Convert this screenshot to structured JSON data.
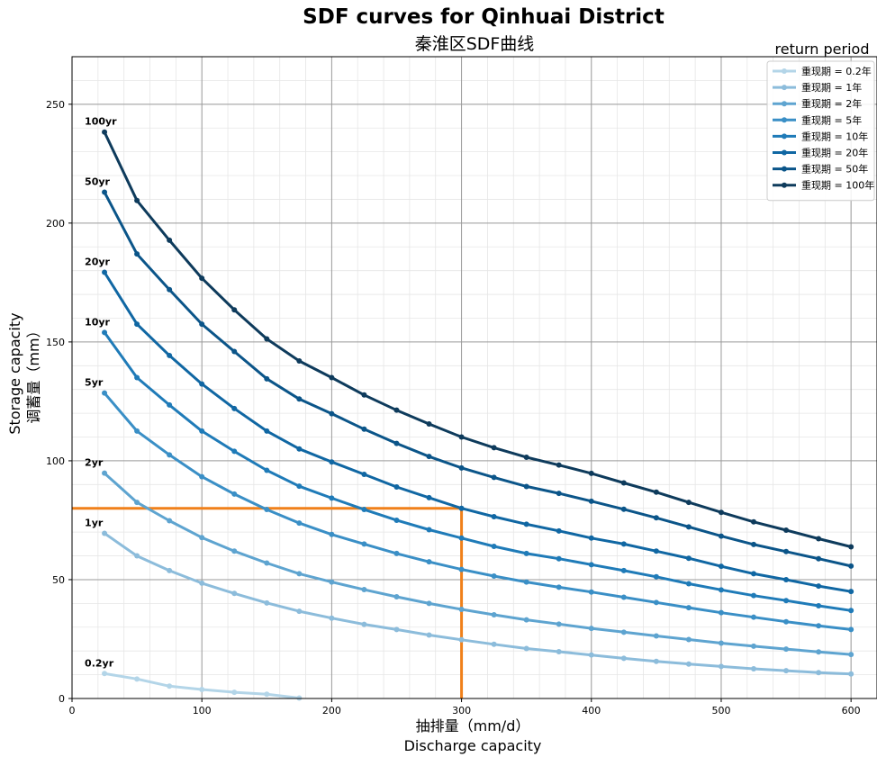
{
  "chart_data": {
    "type": "line",
    "title": "SDF curves for Qinhuai District",
    "subtitle": "秦淮区SDF曲线",
    "xlabel_zh": "抽排量（mm/d）",
    "xlabel_en": "Discharge capacity",
    "ylabel_en": "Storage capacity",
    "ylabel_zh": "调蓄量（mm）",
    "xlim": [
      0,
      620
    ],
    "ylim": [
      0,
      270
    ],
    "x_ticks": [
      "0",
      "100",
      "200",
      "300",
      "400",
      "500",
      "600"
    ],
    "y_ticks": [
      "0",
      "50",
      "100",
      "150",
      "200",
      "250"
    ],
    "x_tick_values": [
      0,
      100,
      200,
      300,
      400,
      500,
      600
    ],
    "y_tick_values": [
      0,
      50,
      100,
      150,
      200,
      250
    ],
    "grid": true,
    "legend_title": "return period",
    "legend_position": "top-right",
    "series": [
      {
        "name": "重现期 = 0.2年",
        "label": "0.2yr",
        "color": "#b3d5e8",
        "x": [
          25,
          50,
          75,
          100,
          125,
          150,
          175
        ],
        "values": [
          10.5,
          8.2,
          5.2,
          3.8,
          2.6,
          1.8,
          0.2
        ]
      },
      {
        "name": "重现期 = 1年",
        "label": "1yr",
        "color": "#8cbcdb",
        "x": [
          25,
          50,
          75,
          100,
          125,
          150,
          175,
          200,
          225,
          250,
          275,
          300,
          325,
          350,
          375,
          400,
          425,
          450,
          475,
          500,
          525,
          550,
          575,
          600
        ],
        "values": [
          69.5,
          60,
          53.8,
          48.5,
          44.2,
          40.2,
          36.7,
          33.8,
          31.2,
          29,
          26.7,
          24.7,
          22.8,
          21,
          19.7,
          18.3,
          16.9,
          15.6,
          14.5,
          13.5,
          12.5,
          11.7,
          10.9,
          10.3
        ]
      },
      {
        "name": "重现期 = 2年",
        "label": "2yr",
        "color": "#5ea4d0",
        "x": [
          25,
          50,
          75,
          100,
          125,
          150,
          175,
          200,
          225,
          250,
          275,
          300,
          325,
          350,
          375,
          400,
          425,
          450,
          475,
          500,
          525,
          550,
          575,
          600
        ],
        "values": [
          94.8,
          82.5,
          74.8,
          67.7,
          62,
          57,
          52.5,
          49,
          45.8,
          42.8,
          40,
          37.5,
          35.2,
          33.1,
          31.3,
          29.5,
          27.9,
          26.3,
          24.8,
          23.3,
          22,
          20.8,
          19.6,
          18.5
        ]
      },
      {
        "name": "重现期 = 5年",
        "label": "5yr",
        "color": "#3a8fc6",
        "x": [
          25,
          50,
          75,
          100,
          125,
          150,
          175,
          200,
          225,
          250,
          275,
          300,
          325,
          350,
          375,
          400,
          425,
          450,
          475,
          500,
          525,
          550,
          575,
          600
        ],
        "values": [
          128.5,
          112.5,
          102.5,
          93.3,
          86,
          79.5,
          73.8,
          69,
          65,
          61,
          57.5,
          54.3,
          51.5,
          49,
          46.8,
          44.8,
          42.6,
          40.4,
          38.2,
          36.1,
          34.2,
          32.3,
          30.6,
          29
        ]
      },
      {
        "name": "重现期 = 10年",
        "label": "10yr",
        "color": "#1f7bb8",
        "x": [
          25,
          50,
          75,
          100,
          125,
          150,
          175,
          200,
          225,
          250,
          275,
          300,
          325,
          350,
          375,
          400,
          425,
          450,
          475,
          500,
          525,
          550,
          575,
          600
        ],
        "values": [
          154,
          135,
          123.5,
          112.5,
          104,
          96,
          89.3,
          84.3,
          79.5,
          75,
          71,
          67.5,
          64,
          61,
          58.8,
          56.3,
          53.8,
          51.2,
          48.3,
          45.7,
          43.3,
          41.2,
          39,
          37
        ]
      },
      {
        "name": "重现期 = 20年",
        "label": "20yr",
        "color": "#1067a3",
        "x": [
          25,
          50,
          75,
          100,
          125,
          150,
          175,
          200,
          225,
          250,
          275,
          300,
          325,
          350,
          375,
          400,
          425,
          450,
          475,
          500,
          525,
          550,
          575,
          600
        ],
        "values": [
          179.3,
          157.5,
          144.3,
          132.3,
          122,
          112.5,
          105,
          99.5,
          94.3,
          89,
          84.5,
          80,
          76.5,
          73.3,
          70.5,
          67.5,
          65,
          62,
          59,
          55.6,
          52.5,
          50,
          47.3,
          45
        ]
      },
      {
        "name": "重现期 = 50年",
        "label": "50yr",
        "color": "#0b5589",
        "x": [
          25,
          50,
          75,
          100,
          125,
          150,
          175,
          200,
          225,
          250,
          275,
          300,
          325,
          350,
          375,
          400,
          425,
          450,
          475,
          500,
          525,
          550,
          575,
          600
        ],
        "values": [
          213,
          187,
          172,
          157.5,
          146,
          134.5,
          126,
          119.8,
          113.3,
          107.3,
          101.8,
          97,
          93,
          89.2,
          86.3,
          83,
          79.6,
          76,
          72.2,
          68.3,
          64.8,
          61.8,
          58.8,
          55.7
        ]
      },
      {
        "name": "重现期 = 100年",
        "label": "100yr",
        "color": "#0e3b5c",
        "x": [
          25,
          50,
          75,
          100,
          125,
          150,
          175,
          200,
          225,
          250,
          275,
          300,
          325,
          350,
          375,
          400,
          425,
          450,
          475,
          500,
          525,
          550,
          575,
          600
        ],
        "values": [
          238.3,
          209.5,
          192.8,
          176.8,
          163.5,
          151.3,
          142,
          135,
          127.7,
          121.3,
          115.5,
          110,
          105.5,
          101.5,
          98.2,
          94.7,
          90.7,
          86.8,
          82.5,
          78.3,
          74.3,
          70.8,
          67.2,
          63.8
        ]
      }
    ],
    "reference_lines": {
      "color": "#f0801a",
      "horizontal": {
        "y": 80,
        "x_from": 0,
        "x_to": 300
      },
      "vertical": {
        "x": 300,
        "y_from": 0,
        "y_to": 80
      }
    }
  }
}
